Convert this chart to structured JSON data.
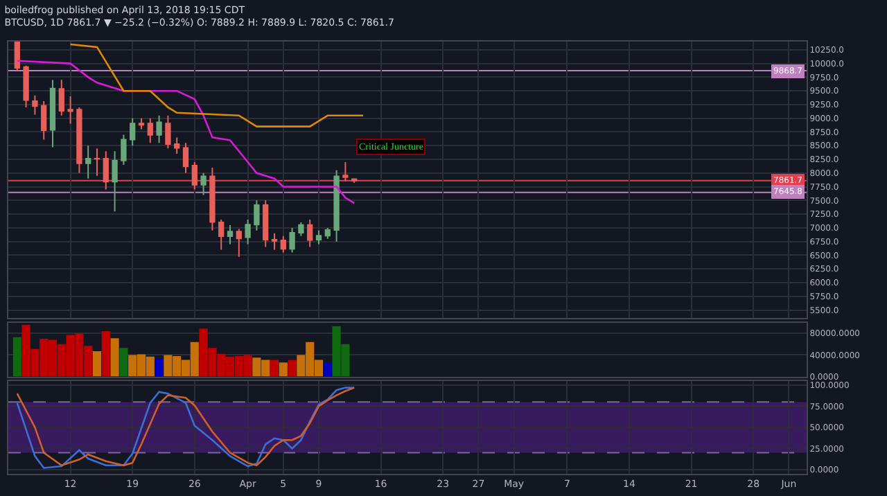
{
  "chart_data": [
    {
      "type": "candlestick",
      "title": "boiledfrog published on April 13, 2018 19:15 CDT\nBTCUSD, 1D 7861.7 ▼ −25.2 (−0.32%) O: 7889.2 H: 7889.9 L: 7820.5 C: 7861.7",
      "x": [
        "2018-03-06",
        "2018-03-07",
        "2018-03-08",
        "2018-03-09",
        "2018-03-10",
        "2018-03-11",
        "2018-03-12",
        "2018-03-13",
        "2018-03-14",
        "2018-03-15",
        "2018-03-16",
        "2018-03-17",
        "2018-03-18",
        "2018-03-19",
        "2018-03-20",
        "2018-03-21",
        "2018-03-22",
        "2018-03-23",
        "2018-03-24",
        "2018-03-25",
        "2018-03-26",
        "2018-03-27",
        "2018-03-28",
        "2018-03-29",
        "2018-03-30",
        "2018-03-31",
        "2018-04-01",
        "2018-04-02",
        "2018-04-03",
        "2018-04-04",
        "2018-04-05",
        "2018-04-06",
        "2018-04-07",
        "2018-04-08",
        "2018-04-09",
        "2018-04-10",
        "2018-04-11",
        "2018-04-12",
        "2018-04-13"
      ],
      "ohlc": [
        [
          10390,
          10395,
          9880,
          9920
        ],
        [
          9935,
          9960,
          9200,
          9333
        ],
        [
          9312,
          9417,
          9067,
          9221
        ],
        [
          9228,
          9312,
          8612,
          8780
        ],
        [
          8787,
          9697,
          8472,
          9543
        ],
        [
          9536,
          9700,
          9050,
          9137
        ],
        [
          9158,
          9400,
          8900,
          9130
        ],
        [
          9158,
          9200,
          8000,
          8178
        ],
        [
          8178,
          8500,
          7900,
          8262
        ],
        [
          8262,
          8450,
          7950,
          8260
        ],
        [
          8262,
          8400,
          7700,
          7842
        ],
        [
          7842,
          8400,
          7300,
          8227
        ],
        [
          8227,
          8700,
          8150,
          8612
        ],
        [
          8612,
          9000,
          8500,
          8906
        ],
        [
          8906,
          9000,
          8800,
          8878
        ],
        [
          8906,
          9000,
          8550,
          8696
        ],
        [
          8696,
          9050,
          8550,
          8927
        ],
        [
          8906,
          9050,
          8450,
          8528
        ],
        [
          8528,
          8650,
          8350,
          8458
        ],
        [
          8458,
          8550,
          8000,
          8122
        ],
        [
          8136,
          8200,
          7700,
          7786
        ],
        [
          7786,
          8000,
          7600,
          7940
        ],
        [
          7940,
          8100,
          6950,
          7107
        ],
        [
          7100,
          7150,
          6600,
          6848
        ],
        [
          6848,
          7050,
          6700,
          6932
        ],
        [
          6932,
          6980,
          6470,
          6806
        ],
        [
          6827,
          7150,
          6700,
          7058
        ],
        [
          7058,
          7500,
          6950,
          7415
        ],
        [
          7415,
          7500,
          6650,
          6785
        ],
        [
          6785,
          6900,
          6600,
          6760
        ],
        [
          6770,
          6850,
          6550,
          6617
        ],
        [
          6617,
          7000,
          6550,
          6911
        ],
        [
          6911,
          7100,
          6850,
          7051
        ],
        [
          7051,
          7150,
          6650,
          6778
        ],
        [
          6785,
          6950,
          6700,
          6855
        ],
        [
          6855,
          7000,
          6800,
          6960
        ],
        [
          6960,
          8050,
          6750,
          7940
        ],
        [
          7955,
          8200,
          7850,
          7925
        ],
        [
          7889.2,
          7889.9,
          7820.5,
          7861.7
        ]
      ],
      "series": [
        {
          "type": "line",
          "color": "#d81bd8",
          "x": [
            "2018-03-06",
            "2018-03-12",
            "2018-03-14",
            "2018-03-15",
            "2018-03-18",
            "2018-03-24",
            "2018-03-26",
            "2018-03-27",
            "2018-03-28",
            "2018-03-30",
            "2018-04-01",
            "2018-04-02",
            "2018-04-04",
            "2018-04-05",
            "2018-04-11",
            "2018-04-12",
            "2018-04-13"
          ],
          "values": [
            10050,
            10000,
            9750,
            9650,
            9500,
            9500,
            9350,
            9050,
            8650,
            8600,
            8200,
            8000,
            7900,
            7750,
            7750,
            7550,
            7450
          ]
        },
        {
          "type": "line",
          "color": "#e08a00",
          "x": [
            "2018-03-12",
            "2018-03-15",
            "2018-03-18",
            "2018-03-21",
            "2018-03-23",
            "2018-03-24",
            "2018-03-31",
            "2018-04-02",
            "2018-04-08",
            "2018-04-10",
            "2018-04-14"
          ],
          "values": [
            10350,
            10300,
            9500,
            9500,
            9200,
            9100,
            9050,
            8850,
            8850,
            9050,
            9050
          ]
        }
      ],
      "ref_lines": [
        {
          "axis": "y",
          "value": 9868.7,
          "label": "9868.7",
          "color": "#c080c0"
        },
        {
          "axis": "y",
          "value": 7861.7,
          "label": "7861.7",
          "color": "#e04050"
        },
        {
          "axis": "y",
          "value": 7645.8,
          "label": "7645.8",
          "color": "#c080c0"
        }
      ],
      "annotations": [
        "Critical Juncture"
      ],
      "xlim": [
        "2018-03-05",
        "2018-06-03"
      ],
      "xticks": [
        {
          "value": "2018-03-12",
          "label": null
        },
        {
          "value": "2018-03-19",
          "label": null
        },
        {
          "value": "2018-03-26",
          "label": null
        },
        {
          "value": "2018-04-01",
          "label": null
        },
        {
          "value": "2018-04-05",
          "label": null
        },
        {
          "value": "2018-04-09",
          "label": null
        },
        {
          "value": "2018-04-16",
          "label": null
        },
        {
          "value": "2018-04-23",
          "label": null
        },
        {
          "value": "2018-04-27",
          "label": null
        },
        {
          "value": "2018-05-01",
          "label": null
        },
        {
          "value": "2018-05-07",
          "label": null
        },
        {
          "value": "2018-05-14",
          "label": null
        },
        {
          "value": "2018-05-21",
          "label": null
        },
        {
          "value": "2018-05-28",
          "label": null
        },
        {
          "value": "2018-06-01",
          "label": null
        }
      ],
      "ylim": [
        5350,
        10400
      ],
      "yticks": [
        {
          "value": 5500,
          "label": "5500.0"
        },
        {
          "value": 5750,
          "label": "5750.0"
        },
        {
          "value": 6000,
          "label": "6000.0"
        },
        {
          "value": 6250,
          "label": "6250.0"
        },
        {
          "value": 6500,
          "label": "6500.0"
        },
        {
          "value": 6750,
          "label": "6750.0"
        },
        {
          "value": 7000,
          "label": "7000.0"
        },
        {
          "value": 7250,
          "label": "7250.0"
        },
        {
          "value": 7500,
          "label": "7500.0"
        },
        {
          "value": 7750,
          "label": "7750.0"
        },
        {
          "value": 8000,
          "label": "8000.0"
        },
        {
          "value": 8250,
          "label": "8250.0"
        },
        {
          "value": 8500,
          "label": "8500.0"
        },
        {
          "value": 8750,
          "label": "8750.0"
        },
        {
          "value": 9000,
          "label": "9000.0"
        },
        {
          "value": 9250,
          "label": "9250.0"
        },
        {
          "value": 9500,
          "label": "9500.0"
        },
        {
          "value": 9750,
          "label": "9750.0"
        },
        {
          "value": 10000,
          "label": "10000.0"
        },
        {
          "value": 10250,
          "label": "10250.0"
        }
      ],
      "grid": true,
      "tick_labels": "y"
    },
    {
      "type": "bar",
      "x": [
        "2018-03-06",
        "2018-03-07",
        "2018-03-08",
        "2018-03-09",
        "2018-03-10",
        "2018-03-11",
        "2018-03-12",
        "2018-03-13",
        "2018-03-14",
        "2018-03-15",
        "2018-03-16",
        "2018-03-17",
        "2018-03-18",
        "2018-03-19",
        "2018-03-20",
        "2018-03-21",
        "2018-03-22",
        "2018-03-23",
        "2018-03-24",
        "2018-03-25",
        "2018-03-26",
        "2018-03-27",
        "2018-03-28",
        "2018-03-29",
        "2018-03-30",
        "2018-03-31",
        "2018-04-01",
        "2018-04-02",
        "2018-04-03",
        "2018-04-04",
        "2018-04-05",
        "2018-04-06",
        "2018-04-07",
        "2018-04-08",
        "2018-04-09",
        "2018-04-10",
        "2018-04-11",
        "2018-04-12"
      ],
      "values": [
        73000,
        96000,
        51000,
        70000,
        68000,
        60000,
        77000,
        80000,
        57000,
        47000,
        84000,
        71000,
        53000,
        40000,
        41000,
        37000,
        33000,
        40000,
        38000,
        31000,
        64000,
        89000,
        53000,
        42000,
        37000,
        38000,
        40000,
        35000,
        31000,
        31000,
        26000,
        31000,
        40000,
        64000,
        31000,
        26000,
        93000,
        60000
      ],
      "colors": [
        "#0f6b0f",
        "#c00000",
        "#c00000",
        "#c00000",
        "#c00000",
        "#c00000",
        "#c00000",
        "#c00000",
        "#c00000",
        "#c8700a",
        "#c00000",
        "#c8700a",
        "#0f6b0f",
        "#c8700a",
        "#c8700a",
        "#c8700a",
        "#0000c0",
        "#c8700a",
        "#c8700a",
        "#c8700a",
        "#c8700a",
        "#c00000",
        "#c00000",
        "#c00000",
        "#c00000",
        "#c00000",
        "#c00000",
        "#c8700a",
        "#c8700a",
        "#c00000",
        "#c8700a",
        "#c00000",
        "#c8700a",
        "#c8700a",
        "#c8700a",
        "#0000c0",
        "#0f6b0f",
        "#0f6b0f"
      ],
      "xlim": [
        "2018-03-05",
        "2018-06-03"
      ],
      "ylim": [
        0,
        100000
      ],
      "yticks": [
        {
          "value": 0,
          "label": "0.0000"
        },
        {
          "value": 40000,
          "label": "40000.0000"
        },
        {
          "value": 80000,
          "label": "80000.0000"
        }
      ],
      "grid": true,
      "tick_labels": "y"
    },
    {
      "type": "line",
      "series": [
        {
          "color": "#3b6fd8",
          "x": [
            "2018-03-06",
            "2018-03-08",
            "2018-03-09",
            "2018-03-11",
            "2018-03-13",
            "2018-03-14",
            "2018-03-16",
            "2018-03-18",
            "2018-03-19",
            "2018-03-21",
            "2018-03-22",
            "2018-03-23",
            "2018-03-25",
            "2018-03-26",
            "2018-03-28",
            "2018-03-30",
            "2018-04-01",
            "2018-04-02",
            "2018-04-03",
            "2018-04-04",
            "2018-04-05",
            "2018-04-06",
            "2018-04-07",
            "2018-04-08",
            "2018-04-09",
            "2018-04-10",
            "2018-04-11",
            "2018-04-12",
            "2018-04-13"
          ],
          "values": [
            79,
            16,
            2,
            4,
            23,
            13,
            5,
            5,
            19,
            79,
            92,
            90,
            79,
            52,
            35,
            16,
            4,
            7,
            30,
            37,
            35,
            25,
            35,
            57,
            77,
            83,
            94,
            97,
            97
          ]
        },
        {
          "color": "#d0602a",
          "x": [
            "2018-03-06",
            "2018-03-08",
            "2018-03-09",
            "2018-03-11",
            "2018-03-13",
            "2018-03-14",
            "2018-03-16",
            "2018-03-18",
            "2018-03-19",
            "2018-03-20",
            "2018-03-22",
            "2018-03-23",
            "2018-03-25",
            "2018-03-26",
            "2018-03-28",
            "2018-03-30",
            "2018-04-01",
            "2018-04-02",
            "2018-04-03",
            "2018-04-04",
            "2018-04-05",
            "2018-04-06",
            "2018-04-07",
            "2018-04-08",
            "2018-04-09",
            "2018-04-10",
            "2018-04-11",
            "2018-04-12",
            "2018-04-13"
          ],
          "values": [
            90,
            50,
            20,
            5,
            12,
            18,
            10,
            5,
            8,
            30,
            78,
            88,
            85,
            76,
            45,
            20,
            8,
            5,
            15,
            28,
            35,
            35,
            40,
            55,
            75,
            82,
            88,
            93,
            97
          ]
        }
      ],
      "bands": [
        {
          "axis": "y",
          "from": 20,
          "to": 80,
          "color": "#3a1a5e"
        }
      ],
      "ref_lines": [
        {
          "axis": "y",
          "value": 20,
          "color": "#7a6a9a",
          "line_style": "dashed"
        },
        {
          "axis": "y",
          "value": 80,
          "color": "#7a6a9a",
          "line_style": "dashed"
        }
      ],
      "xlim": [
        "2018-03-05",
        "2018-06-03"
      ],
      "xticks": [
        {
          "value": "2018-03-12",
          "label": "12"
        },
        {
          "value": "2018-03-19",
          "label": "19"
        },
        {
          "value": "2018-03-26",
          "label": "26"
        },
        {
          "value": "2018-04-01",
          "label": "Apr"
        },
        {
          "value": "2018-04-05",
          "label": "5"
        },
        {
          "value": "2018-04-09",
          "label": "9"
        },
        {
          "value": "2018-04-16",
          "label": "16"
        },
        {
          "value": "2018-04-23",
          "label": "23"
        },
        {
          "value": "2018-04-27",
          "label": "27"
        },
        {
          "value": "2018-05-01",
          "label": "May"
        },
        {
          "value": "2018-05-07",
          "label": "7"
        },
        {
          "value": "2018-05-14",
          "label": "14"
        },
        {
          "value": "2018-05-21",
          "label": "21"
        },
        {
          "value": "2018-05-28",
          "label": "28"
        },
        {
          "value": "2018-06-01",
          "label": "Jun"
        }
      ],
      "ylim": [
        -5,
        105
      ],
      "yticks": [
        {
          "value": 0,
          "label": "0.0000"
        },
        {
          "value": 25,
          "label": "25.0000"
        },
        {
          "value": 50,
          "label": "50.0000"
        },
        {
          "value": 75,
          "label": "75.0000"
        },
        {
          "value": 100,
          "label": "100.0000"
        }
      ],
      "grid": true
    }
  ]
}
